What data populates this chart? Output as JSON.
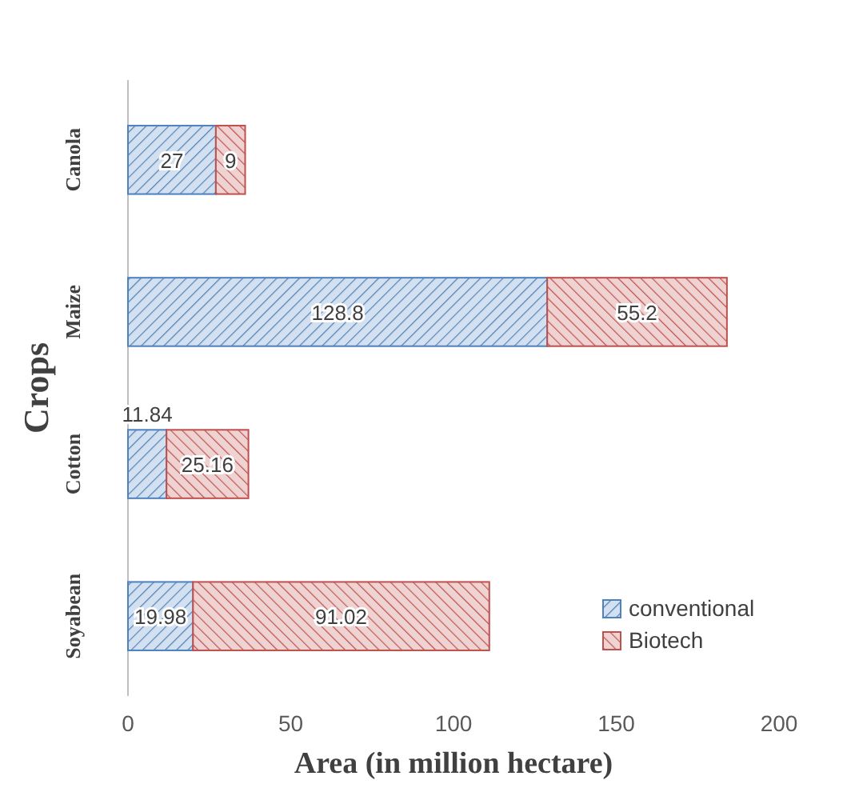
{
  "chart_data": {
    "type": "bar",
    "orientation": "horizontal",
    "stacked": true,
    "xlabel": "Area (in million hectare)",
    "ylabel": "Crops",
    "categories": [
      "Canola",
      "Maize",
      "Cotton",
      "Soyabean"
    ],
    "series": [
      {
        "name": "conventional",
        "color": "#4f81bd",
        "values": [
          27,
          128.8,
          11.84,
          19.98
        ]
      },
      {
        "name": "Biotech",
        "color": "#c0504d",
        "values": [
          9,
          55.2,
          25.16,
          91.02
        ]
      }
    ],
    "xlim": [
      0,
      200
    ],
    "xticks": [
      0,
      50,
      100,
      150,
      200
    ],
    "data_labels": true,
    "legend": "bottom right",
    "grid": false
  }
}
